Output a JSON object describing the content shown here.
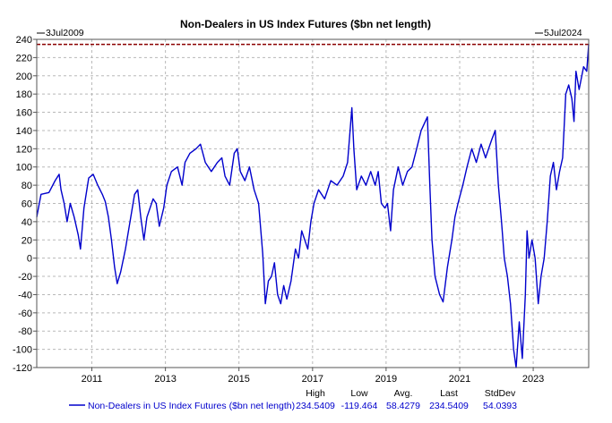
{
  "chart_data": {
    "type": "line",
    "title": "Non-Dealers in US Index Futures ($bn net length)",
    "start_label": "3Jul2009",
    "end_label": "5Jul2024",
    "x_range": [
      "2009-07-03",
      "2024-07-05"
    ],
    "ylim": [
      -120,
      240
    ],
    "yticks": [
      240,
      220,
      200,
      180,
      160,
      140,
      120,
      100,
      80,
      60,
      40,
      20,
      0,
      -20,
      -40,
      -60,
      -80,
      -100,
      -120
    ],
    "xticks": [
      "2011",
      "2013",
      "2015",
      "2017",
      "2019",
      "2021",
      "2023"
    ],
    "grid": true,
    "reference_line": {
      "value": 234.5409,
      "style": "dashed",
      "color": "#8b0000"
    },
    "series": [
      {
        "name": "Non-Dealers in US Index Futures ($bn net length)",
        "color": "#0000cc",
        "points": [
          [
            "2009-07-03",
            45
          ],
          [
            "2009-08-15",
            70
          ],
          [
            "2009-11-01",
            72
          ],
          [
            "2010-01-01",
            85
          ],
          [
            "2010-02-10",
            92
          ],
          [
            "2010-03-01",
            75
          ],
          [
            "2010-04-01",
            60
          ],
          [
            "2010-05-01",
            40
          ],
          [
            "2010-06-01",
            60
          ],
          [
            "2010-07-10",
            45
          ],
          [
            "2010-08-20",
            25
          ],
          [
            "2010-09-10",
            10
          ],
          [
            "2010-10-15",
            55
          ],
          [
            "2010-12-01",
            88
          ],
          [
            "2011-01-15",
            92
          ],
          [
            "2011-03-01",
            80
          ],
          [
            "2011-04-15",
            70
          ],
          [
            "2011-05-15",
            62
          ],
          [
            "2011-06-15",
            45
          ],
          [
            "2011-07-15",
            20
          ],
          [
            "2011-08-15",
            -10
          ],
          [
            "2011-09-10",
            -28
          ],
          [
            "2011-10-15",
            -15
          ],
          [
            "2011-12-01",
            10
          ],
          [
            "2012-01-15",
            40
          ],
          [
            "2012-03-01",
            70
          ],
          [
            "2012-04-01",
            75
          ],
          [
            "2012-05-01",
            45
          ],
          [
            "2012-06-01",
            20
          ],
          [
            "2012-07-01",
            45
          ],
          [
            "2012-09-01",
            65
          ],
          [
            "2012-10-01",
            60
          ],
          [
            "2012-11-01",
            35
          ],
          [
            "2012-12-15",
            55
          ],
          [
            "2013-01-15",
            80
          ],
          [
            "2013-03-01",
            95
          ],
          [
            "2013-05-01",
            100
          ],
          [
            "2013-06-15",
            80
          ],
          [
            "2013-07-15",
            105
          ],
          [
            "2013-09-01",
            115
          ],
          [
            "2013-11-01",
            120
          ],
          [
            "2013-12-15",
            125
          ],
          [
            "2014-02-01",
            105
          ],
          [
            "2014-04-01",
            95
          ],
          [
            "2014-06-01",
            105
          ],
          [
            "2014-07-15",
            110
          ],
          [
            "2014-08-15",
            90
          ],
          [
            "2014-10-01",
            80
          ],
          [
            "2014-11-15",
            115
          ],
          [
            "2014-12-15",
            120
          ],
          [
            "2015-01-15",
            95
          ],
          [
            "2015-03-01",
            85
          ],
          [
            "2015-04-15",
            100
          ],
          [
            "2015-06-01",
            75
          ],
          [
            "2015-07-15",
            60
          ],
          [
            "2015-08-25",
            5
          ],
          [
            "2015-09-20",
            -50
          ],
          [
            "2015-10-20",
            -25
          ],
          [
            "2015-11-20",
            -20
          ],
          [
            "2015-12-20",
            -5
          ],
          [
            "2016-01-20",
            -40
          ],
          [
            "2016-02-20",
            -50
          ],
          [
            "2016-03-20",
            -30
          ],
          [
            "2016-04-20",
            -45
          ],
          [
            "2016-06-01",
            -25
          ],
          [
            "2016-07-15",
            10
          ],
          [
            "2016-08-15",
            0
          ],
          [
            "2016-09-15",
            30
          ],
          [
            "2016-10-15",
            20
          ],
          [
            "2016-11-15",
            10
          ],
          [
            "2016-12-15",
            40
          ],
          [
            "2017-01-15",
            60
          ],
          [
            "2017-03-01",
            75
          ],
          [
            "2017-05-01",
            65
          ],
          [
            "2017-07-01",
            85
          ],
          [
            "2017-09-01",
            80
          ],
          [
            "2017-11-01",
            90
          ],
          [
            "2017-12-15",
            105
          ],
          [
            "2018-01-26",
            165
          ],
          [
            "2018-02-15",
            120
          ],
          [
            "2018-03-15",
            75
          ],
          [
            "2018-05-01",
            90
          ],
          [
            "2018-06-15",
            80
          ],
          [
            "2018-08-01",
            95
          ],
          [
            "2018-09-15",
            80
          ],
          [
            "2018-10-15",
            95
          ],
          [
            "2018-11-15",
            60
          ],
          [
            "2018-12-20",
            55
          ],
          [
            "2019-01-15",
            60
          ],
          [
            "2019-02-15",
            30
          ],
          [
            "2019-03-15",
            75
          ],
          [
            "2019-05-01",
            100
          ],
          [
            "2019-06-15",
            80
          ],
          [
            "2019-08-01",
            95
          ],
          [
            "2019-09-15",
            100
          ],
          [
            "2019-11-01",
            120
          ],
          [
            "2019-12-15",
            140
          ],
          [
            "2020-02-15",
            155
          ],
          [
            "2020-03-10",
            80
          ],
          [
            "2020-04-01",
            20
          ],
          [
            "2020-05-01",
            -20
          ],
          [
            "2020-06-15",
            -40
          ],
          [
            "2020-07-20",
            -48
          ],
          [
            "2020-09-01",
            -10
          ],
          [
            "2020-10-15",
            20
          ],
          [
            "2020-11-15",
            45
          ],
          [
            "2020-12-15",
            60
          ],
          [
            "2021-02-01",
            80
          ],
          [
            "2021-03-15",
            100
          ],
          [
            "2021-05-01",
            120
          ],
          [
            "2021-06-15",
            105
          ],
          [
            "2021-08-01",
            125
          ],
          [
            "2021-09-15",
            110
          ],
          [
            "2021-10-15",
            120
          ],
          [
            "2021-11-15",
            130
          ],
          [
            "2021-12-20",
            140
          ],
          [
            "2022-01-20",
            80
          ],
          [
            "2022-02-20",
            40
          ],
          [
            "2022-03-20",
            0
          ],
          [
            "2022-04-20",
            -20
          ],
          [
            "2022-05-20",
            -50
          ],
          [
            "2022-06-20",
            -100
          ],
          [
            "2022-07-15",
            -120
          ],
          [
            "2022-08-15",
            -70
          ],
          [
            "2022-09-15",
            -110
          ],
          [
            "2022-10-15",
            -40
          ],
          [
            "2022-11-01",
            30
          ],
          [
            "2022-11-20",
            0
          ],
          [
            "2022-12-20",
            20
          ],
          [
            "2023-01-20",
            0
          ],
          [
            "2023-02-20",
            -50
          ],
          [
            "2023-03-20",
            -20
          ],
          [
            "2023-04-20",
            0
          ],
          [
            "2023-05-20",
            40
          ],
          [
            "2023-06-20",
            90
          ],
          [
            "2023-07-20",
            105
          ],
          [
            "2023-08-20",
            75
          ],
          [
            "2023-09-20",
            95
          ],
          [
            "2023-10-20",
            110
          ],
          [
            "2023-11-20",
            180
          ],
          [
            "2023-12-20",
            190
          ],
          [
            "2024-01-20",
            175
          ],
          [
            "2024-02-10",
            150
          ],
          [
            "2024-03-01",
            205
          ],
          [
            "2024-04-01",
            185
          ],
          [
            "2024-05-15",
            210
          ],
          [
            "2024-06-15",
            205
          ],
          [
            "2024-07-05",
            234.5409
          ]
        ]
      }
    ],
    "stats": {
      "headers": [
        "High",
        "Low",
        "Avg.",
        "Last",
        "StdDev"
      ],
      "values": [
        "234.5409",
        "-119.464",
        "58.4279",
        "234.5409",
        "54.0393"
      ]
    }
  }
}
